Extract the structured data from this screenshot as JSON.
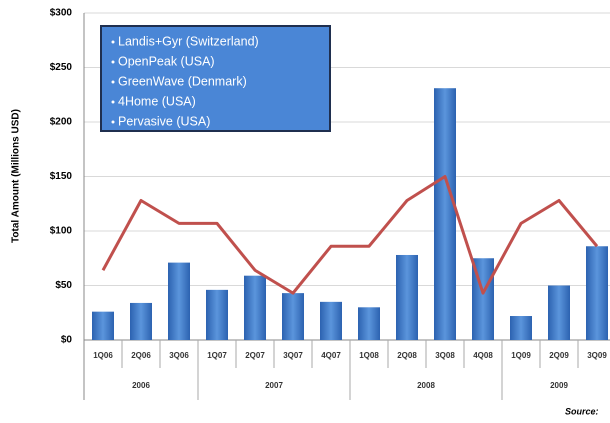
{
  "chart_data": {
    "type": "bar-line",
    "y_label": "Total Amount (Millions USD)",
    "categories": [
      "1Q06",
      "2Q06",
      "3Q06",
      "1Q07",
      "2Q07",
      "3Q07",
      "4Q07",
      "1Q08",
      "2Q08",
      "3Q08",
      "4Q08",
      "1Q09",
      "2Q09",
      "3Q09"
    ],
    "groups": [
      {
        "label": "2006",
        "count": 3
      },
      {
        "label": "2007",
        "count": 4
      },
      {
        "label": "2008",
        "count": 4
      },
      {
        "label": "2009",
        "count": 3
      }
    ],
    "series": [
      {
        "kind": "bar",
        "color": "#3b78c9",
        "values": [
          26,
          34,
          71,
          46,
          59,
          43,
          35,
          30,
          78,
          231,
          75,
          22,
          50,
          86
        ]
      },
      {
        "kind": "line",
        "color": "#c0504d",
        "values": [
          64,
          128,
          107,
          107,
          64,
          43,
          86,
          86,
          128,
          150,
          43,
          107,
          128,
          86
        ]
      }
    ],
    "ylim": [
      0,
      300
    ],
    "yticks": [
      {
        "value": 0,
        "label": "$0"
      },
      {
        "value": 50,
        "label": "$50"
      },
      {
        "value": 100,
        "label": "$100"
      },
      {
        "value": 150,
        "label": "$150"
      },
      {
        "value": 200,
        "label": "$200"
      },
      {
        "value": 250,
        "label": "$250"
      },
      {
        "value": 300,
        "label": "$300"
      }
    ],
    "grid": true,
    "annotation_lines": [
      "Landis+Gyr (Switzerland)",
      "OpenPeak (USA)",
      "GreenWave (Denmark)",
      "4Home (USA)",
      "Pervasive (USA)"
    ],
    "source": "Source:"
  }
}
